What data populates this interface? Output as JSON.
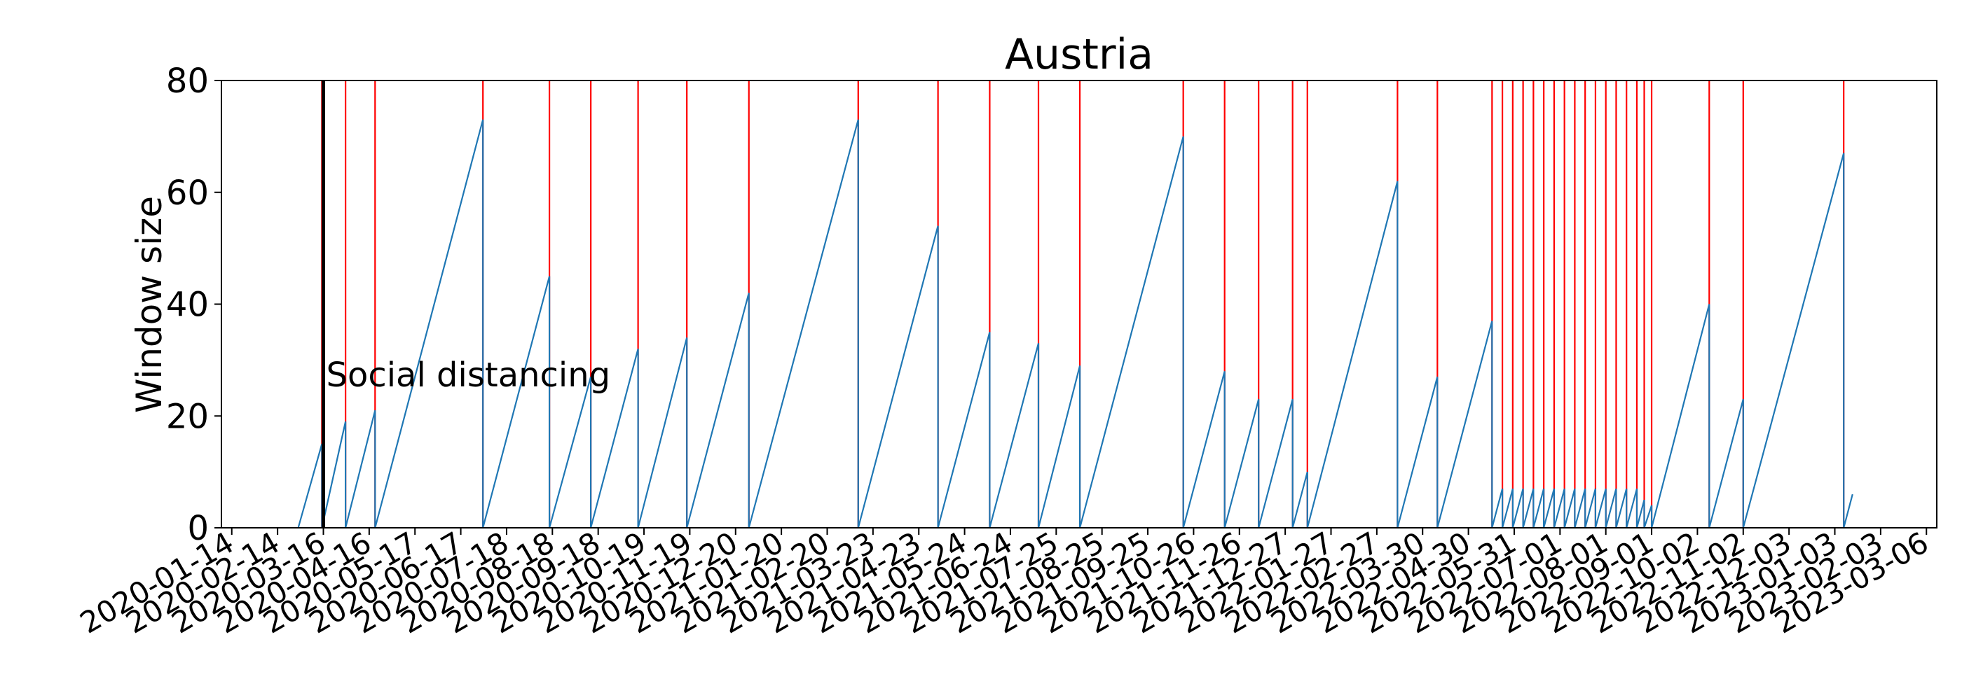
{
  "chart_data": {
    "type": "line",
    "title": "Austria",
    "xlabel": "",
    "ylabel": "Window size",
    "xlim": [
      "2020-01-07",
      "2023-03-13"
    ],
    "ylim": [
      0,
      80
    ],
    "yticks": [
      0,
      20,
      40,
      60,
      80
    ],
    "xticks": [
      "2020-01-14",
      "2020-02-14",
      "2020-03-16",
      "2020-04-16",
      "2020-05-17",
      "2020-06-17",
      "2020-07-18",
      "2020-08-18",
      "2020-09-18",
      "2020-10-19",
      "2020-11-19",
      "2020-12-20",
      "2021-01-20",
      "2021-02-20",
      "2021-03-23",
      "2021-04-23",
      "2021-05-24",
      "2021-06-24",
      "2021-07-25",
      "2021-08-25",
      "2021-09-25",
      "2021-10-26",
      "2021-11-26",
      "2021-12-27",
      "2022-01-27",
      "2022-02-27",
      "2022-03-30",
      "2022-04-30",
      "2022-05-31",
      "2022-07-01",
      "2022-08-01",
      "2022-09-01",
      "2022-10-02",
      "2022-11-02",
      "2022-12-03",
      "2023-01-03",
      "2023-02-03",
      "2023-03-06"
    ],
    "grid": false,
    "series": [
      {
        "color": "#1f77b4",
        "points": [
          [
            "2020-02-28",
            0
          ],
          [
            "2020-03-15",
            15
          ],
          [
            "2020-03-15",
            0
          ],
          [
            "2020-03-31",
            19
          ],
          [
            "2020-03-31",
            0
          ],
          [
            "2020-04-20",
            21
          ],
          [
            "2020-04-20",
            0
          ],
          [
            "2020-07-02",
            73
          ],
          [
            "2020-07-02",
            0
          ],
          [
            "2020-08-16",
            45
          ],
          [
            "2020-08-16",
            0
          ],
          [
            "2020-09-13",
            27
          ],
          [
            "2020-09-13",
            0
          ],
          [
            "2020-10-15",
            32
          ],
          [
            "2020-10-15",
            0
          ],
          [
            "2020-11-17",
            34
          ],
          [
            "2020-11-17",
            0
          ],
          [
            "2020-12-29",
            42
          ],
          [
            "2020-12-29",
            0
          ],
          [
            "2021-03-13",
            73
          ],
          [
            "2021-03-13",
            0
          ],
          [
            "2021-05-06",
            54
          ],
          [
            "2021-05-06",
            0
          ],
          [
            "2021-06-10",
            35
          ],
          [
            "2021-06-10",
            0
          ],
          [
            "2021-07-13",
            33
          ],
          [
            "2021-07-13",
            0
          ],
          [
            "2021-08-10",
            29
          ],
          [
            "2021-08-10",
            0
          ],
          [
            "2021-10-19",
            70
          ],
          [
            "2021-10-19",
            0
          ],
          [
            "2021-11-16",
            28
          ],
          [
            "2021-11-16",
            0
          ],
          [
            "2021-12-09",
            23
          ],
          [
            "2021-12-09",
            0
          ],
          [
            "2022-01-01",
            23
          ],
          [
            "2022-01-01",
            0
          ],
          [
            "2022-01-11",
            10
          ],
          [
            "2022-01-11",
            0
          ],
          [
            "2022-03-13",
            62
          ],
          [
            "2022-03-13",
            0
          ],
          [
            "2022-04-09",
            27
          ],
          [
            "2022-04-09",
            0
          ],
          [
            "2022-05-16",
            37
          ],
          [
            "2022-05-16",
            0
          ],
          [
            "2022-05-23",
            7
          ],
          [
            "2022-05-23",
            0
          ],
          [
            "2022-05-30",
            7
          ],
          [
            "2022-05-30",
            0
          ],
          [
            "2022-06-06",
            7
          ],
          [
            "2022-06-06",
            0
          ],
          [
            "2022-06-13",
            7
          ],
          [
            "2022-06-13",
            0
          ],
          [
            "2022-06-20",
            7
          ],
          [
            "2022-06-20",
            0
          ],
          [
            "2022-06-27",
            7
          ],
          [
            "2022-06-27",
            0
          ],
          [
            "2022-07-04",
            7
          ],
          [
            "2022-07-04",
            0
          ],
          [
            "2022-07-11",
            7
          ],
          [
            "2022-07-11",
            0
          ],
          [
            "2022-07-18",
            7
          ],
          [
            "2022-07-18",
            0
          ],
          [
            "2022-07-25",
            7
          ],
          [
            "2022-07-25",
            0
          ],
          [
            "2022-08-01",
            7
          ],
          [
            "2022-08-01",
            0
          ],
          [
            "2022-08-08",
            7
          ],
          [
            "2022-08-08",
            0
          ],
          [
            "2022-08-15",
            7
          ],
          [
            "2022-08-15",
            0
          ],
          [
            "2022-08-22",
            7
          ],
          [
            "2022-08-22",
            0
          ],
          [
            "2022-08-27",
            5
          ],
          [
            "2022-08-27",
            0
          ],
          [
            "2022-09-01",
            4
          ],
          [
            "2022-09-01",
            0
          ],
          [
            "2022-10-10",
            40
          ],
          [
            "2022-10-10",
            0
          ],
          [
            "2022-11-02",
            23
          ],
          [
            "2022-11-02",
            0
          ],
          [
            "2023-01-09",
            67
          ],
          [
            "2023-01-09",
            0
          ],
          [
            "2023-01-15",
            6
          ]
        ]
      }
    ],
    "markers": {
      "color": "#ff0000",
      "dates": [
        "2020-03-15",
        "2020-03-31",
        "2020-04-20",
        "2020-07-02",
        "2020-08-16",
        "2020-09-13",
        "2020-10-15",
        "2020-11-17",
        "2020-12-29",
        "2021-03-13",
        "2021-05-06",
        "2021-06-10",
        "2021-07-13",
        "2021-08-10",
        "2021-10-19",
        "2021-11-16",
        "2021-12-09",
        "2022-01-01",
        "2022-01-11",
        "2022-03-13",
        "2022-04-09",
        "2022-05-16",
        "2022-05-23",
        "2022-05-30",
        "2022-06-06",
        "2022-06-13",
        "2022-06-20",
        "2022-06-27",
        "2022-07-04",
        "2022-07-11",
        "2022-07-18",
        "2022-07-25",
        "2022-08-01",
        "2022-08-08",
        "2022-08-15",
        "2022-08-22",
        "2022-08-27",
        "2022-09-01",
        "2022-10-10",
        "2022-11-02",
        "2023-01-09"
      ]
    },
    "annotations": [
      {
        "text": "Social distancing",
        "date": "2020-03-16",
        "color": "#000000"
      }
    ]
  }
}
